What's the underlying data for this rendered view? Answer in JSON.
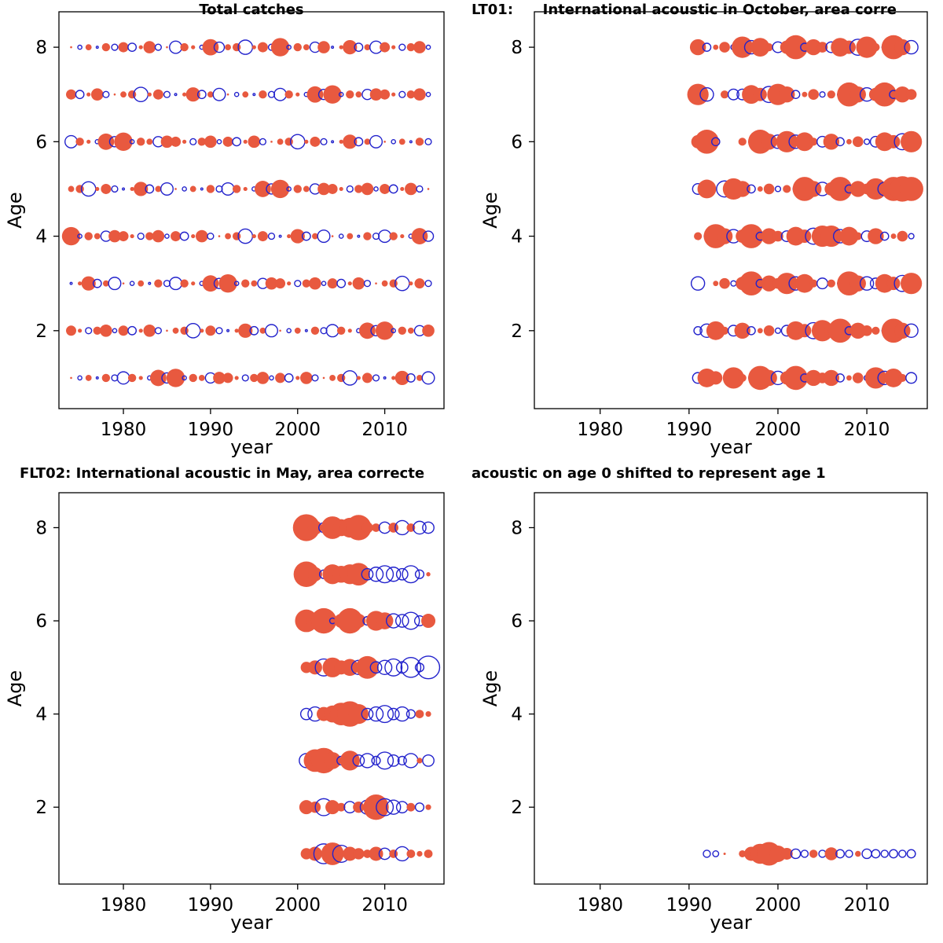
{
  "colors": {
    "positive_fill": "#e8593f",
    "negative_stroke": "#2222cc",
    "axis": "#000000"
  },
  "chart_data": [
    {
      "type": "scatter",
      "subtype": "bubble-residuals",
      "title": "Total catches",
      "xlabel": "year",
      "ylabel": "Age",
      "x_ticks": [
        1980,
        1990,
        2000,
        2010
      ],
      "y_ticks": [
        2,
        4,
        6,
        8
      ],
      "xlim": [
        1972.6,
        2016.8
      ],
      "ylim": [
        0.35,
        8.75
      ],
      "years": [
        1974,
        1975,
        1976,
        1977,
        1978,
        1979,
        1980,
        1981,
        1982,
        1983,
        1984,
        1985,
        1986,
        1987,
        1988,
        1989,
        1990,
        1991,
        1992,
        1993,
        1994,
        1995,
        1996,
        1997,
        1998,
        1999,
        2000,
        2001,
        2002,
        2003,
        2004,
        2005,
        2006,
        2007,
        2008,
        2009,
        2010,
        2011,
        2012,
        2013,
        2014,
        2015
      ],
      "series": [
        {
          "age": 8,
          "values": [
            0.1,
            -0.2,
            0.3,
            -0.1,
            0.4,
            -0.3,
            0.5,
            -0.4,
            0.2,
            0.6,
            -0.3,
            0.1,
            -0.6,
            0.4,
            0.2,
            -0.2,
            0.8,
            -0.5,
            0.3,
            0.4,
            -0.7,
            0.2,
            0.5,
            -0.3,
            0.9,
            -0.2,
            0.4,
            0.3,
            -0.5,
            0.6,
            -0.1,
            0.2,
            0.7,
            -0.4,
            0.3,
            -0.6,
            0.5,
            0.2,
            -0.3,
            0.4,
            0.6,
            -0.2
          ]
        },
        {
          "age": 7,
          "values": [
            0.5,
            -0.4,
            0.2,
            0.6,
            -0.3,
            0.1,
            0.3,
            0.4,
            -0.7,
            0.2,
            0.5,
            -0.3,
            -0.1,
            0.2,
            0.7,
            -0.4,
            0.3,
            -0.6,
            0.1,
            -0.2,
            0.3,
            -0.1,
            0.4,
            -0.3,
            -0.6,
            0.4,
            0.2,
            -0.2,
            0.8,
            -0.5,
            0.9,
            -0.2,
            0.4,
            0.3,
            -0.5,
            0.6,
            0.5,
            0.2,
            -0.3,
            0.4,
            0.6,
            -0.2
          ]
        },
        {
          "age": 6,
          "values": [
            -0.6,
            0.4,
            0.2,
            -0.2,
            0.8,
            -0.5,
            0.9,
            -0.2,
            0.4,
            0.3,
            -0.5,
            0.6,
            0.5,
            0.2,
            -0.3,
            0.4,
            0.6,
            -0.2,
            0.5,
            -0.4,
            0.2,
            0.6,
            -0.3,
            0.1,
            0.3,
            0.4,
            -0.7,
            0.2,
            0.5,
            -0.3,
            -0.1,
            0.2,
            0.7,
            -0.4,
            0.3,
            -0.6,
            0.1,
            -0.2,
            0.3,
            -0.1,
            0.4,
            -0.3
          ]
        },
        {
          "age": 5,
          "values": [
            0.3,
            0.4,
            -0.7,
            0.2,
            0.5,
            -0.3,
            -0.1,
            0.2,
            0.7,
            -0.4,
            0.3,
            -0.6,
            0.1,
            -0.2,
            0.3,
            -0.1,
            0.4,
            -0.3,
            -0.6,
            0.4,
            0.2,
            -0.2,
            0.8,
            -0.5,
            0.9,
            -0.2,
            0.4,
            0.3,
            -0.5,
            0.6,
            0.5,
            0.2,
            -0.3,
            0.4,
            0.6,
            -0.2,
            0.5,
            -0.4,
            0.2,
            0.6,
            -0.3,
            0.1
          ]
        },
        {
          "age": 4,
          "values": [
            0.9,
            -0.2,
            0.4,
            0.3,
            -0.5,
            0.6,
            0.5,
            0.2,
            -0.3,
            0.4,
            0.6,
            -0.2,
            0.5,
            -0.4,
            0.2,
            0.6,
            -0.3,
            0.1,
            0.3,
            0.4,
            -0.7,
            0.2,
            0.5,
            -0.3,
            -0.1,
            0.2,
            0.7,
            -0.4,
            0.3,
            -0.6,
            0.1,
            -0.2,
            0.3,
            -0.1,
            0.4,
            -0.3,
            -0.6,
            0.4,
            0.2,
            -0.2,
            0.8,
            -0.5
          ]
        },
        {
          "age": 3,
          "values": [
            -0.1,
            0.2,
            0.7,
            -0.4,
            0.3,
            -0.6,
            0.1,
            -0.2,
            0.3,
            -0.1,
            0.4,
            -0.3,
            -0.6,
            0.4,
            0.2,
            -0.2,
            0.8,
            -0.5,
            0.9,
            -0.2,
            0.4,
            0.3,
            -0.5,
            0.6,
            0.5,
            0.2,
            -0.3,
            0.4,
            0.6,
            -0.2,
            0.5,
            -0.4,
            0.2,
            0.6,
            -0.3,
            0.1,
            0.3,
            0.4,
            -0.7,
            0.2,
            0.5,
            -0.3
          ]
        },
        {
          "age": 2,
          "values": [
            0.5,
            0.2,
            -0.3,
            0.4,
            0.6,
            -0.2,
            0.5,
            -0.4,
            0.2,
            0.6,
            -0.3,
            0.1,
            0.3,
            0.4,
            -0.7,
            0.2,
            0.5,
            -0.3,
            -0.1,
            0.2,
            0.7,
            -0.4,
            0.3,
            -0.6,
            0.1,
            -0.2,
            0.3,
            -0.1,
            0.4,
            -0.3,
            -0.6,
            0.4,
            0.2,
            -0.2,
            0.8,
            -0.5,
            0.9,
            -0.2,
            0.4,
            0.3,
            -0.5,
            0.6
          ]
        },
        {
          "age": 1,
          "values": [
            0.1,
            -0.2,
            0.3,
            -0.1,
            0.4,
            -0.3,
            -0.6,
            0.4,
            0.2,
            -0.2,
            0.8,
            -0.5,
            0.9,
            -0.2,
            0.4,
            0.3,
            -0.5,
            0.6,
            0.5,
            0.2,
            -0.3,
            0.4,
            0.6,
            -0.2,
            0.5,
            -0.4,
            0.2,
            0.6,
            -0.3,
            0.1,
            0.3,
            0.4,
            -0.7,
            0.2,
            0.5,
            -0.3,
            -0.1,
            0.2,
            0.7,
            -0.4,
            0.3,
            -0.6
          ]
        }
      ]
    },
    {
      "type": "scatter",
      "subtype": "bubble-residuals",
      "title": "LT01:      International acoustic in October, area corre",
      "xlabel": "year",
      "ylabel": "Age",
      "x_ticks": [
        1980,
        1990,
        2000,
        2010
      ],
      "y_ticks": [
        2,
        4,
        6,
        8
      ],
      "xlim": [
        1972.6,
        2016.8
      ],
      "ylim": [
        0.35,
        8.75
      ],
      "years": [
        1991,
        1992,
        1993,
        1994,
        1995,
        1996,
        1997,
        1998,
        1999,
        2000,
        2001,
        2002,
        2003,
        2004,
        2005,
        2006,
        2007,
        2008,
        2009,
        2010,
        2011,
        2012,
        2013,
        2014,
        2015
      ],
      "series": [
        {
          "age": 8,
          "values": [
            0.6,
            -0.3,
            0.2,
            0.4,
            -0.2,
            0.8,
            -0.5,
            0.7,
            0.3,
            -0.4,
            0.5,
            0.9,
            -0.3,
            0.6,
            0.4,
            -0.4,
            0.7,
            0.5,
            -0.6,
            0.8,
            0.3,
            -0.2,
            0.9,
            0.6,
            -0.5
          ]
        },
        {
          "age": 7,
          "values": [
            0.8,
            -0.5,
            null,
            0.3,
            -0.4,
            -0.4,
            0.7,
            0.5,
            -0.6,
            0.8,
            0.6,
            -0.3,
            0.2,
            0.4,
            -0.2,
            0.3,
            -0.2,
            0.9,
            0.6,
            -0.5,
            0.5,
            0.9,
            -0.3,
            0.6,
            0.4
          ]
        },
        {
          "age": 6,
          "values": [
            0.5,
            0.9,
            -0.3,
            null,
            null,
            0.3,
            -0.2,
            0.9,
            0.6,
            -0.5,
            0.8,
            -0.5,
            0.7,
            0.3,
            -0.4,
            0.6,
            -0.3,
            0.2,
            0.4,
            -0.2,
            -0.4,
            0.7,
            0.5,
            -0.6,
            0.8
          ]
        },
        {
          "age": 5,
          "values": [
            -0.4,
            0.7,
            null,
            -0.6,
            0.8,
            0.6,
            -0.3,
            0.2,
            0.4,
            -0.2,
            0.3,
            -0.2,
            0.9,
            0.6,
            -0.5,
            0.5,
            0.9,
            -0.3,
            0.6,
            0.4,
            0.8,
            -0.5,
            0.9,
            0.95,
            0.9
          ]
        },
        {
          "age": 4,
          "values": [
            0.3,
            -0.2,
            0.9,
            0.6,
            -0.5,
            0.5,
            0.9,
            -0.3,
            0.6,
            0.4,
            -0.4,
            0.7,
            0.5,
            -0.6,
            0.8,
            0.8,
            -0.5,
            0.7,
            0.3,
            -0.4,
            0.6,
            -0.3,
            0.2,
            0.4,
            -0.2
          ]
        },
        {
          "age": 3,
          "values": [
            -0.5,
            null,
            0.2,
            0.4,
            -0.2,
            0.5,
            0.9,
            -0.3,
            0.6,
            0.4,
            0.8,
            -0.5,
            0.7,
            0.3,
            -0.4,
            0.3,
            -0.2,
            0.9,
            0.6,
            -0.5,
            -0.4,
            0.7,
            0.5,
            -0.6,
            0.8
          ]
        },
        {
          "age": 2,
          "values": [
            -0.3,
            -0.5,
            0.7,
            0.3,
            -0.4,
            0.6,
            -0.3,
            0.2,
            0.4,
            -0.2,
            -0.4,
            0.7,
            0.5,
            -0.6,
            0.8,
            0.5,
            0.9,
            -0.3,
            0.6,
            0.4,
            0.3,
            -0.2,
            0.9,
            0.6,
            -0.5
          ]
        },
        {
          "age": 1,
          "values": [
            -0.4,
            0.7,
            0.5,
            null,
            0.8,
            0.3,
            -0.2,
            0.9,
            0.6,
            -0.5,
            0.5,
            0.9,
            -0.3,
            0.6,
            0.4,
            0.6,
            -0.3,
            0.2,
            0.4,
            -0.2,
            0.8,
            -0.5,
            0.7,
            0.3,
            -0.4
          ]
        }
      ]
    },
    {
      "type": "scatter",
      "subtype": "bubble-residuals",
      "title": "FLT02: International acoustic in May, area correcte",
      "xlabel": "year",
      "ylabel": "Age",
      "x_ticks": [
        1980,
        1990,
        2000,
        2010
      ],
      "y_ticks": [
        2,
        4,
        6,
        8
      ],
      "xlim": [
        1972.6,
        2016.8
      ],
      "ylim": [
        0.35,
        8.75
      ],
      "years": [
        2001,
        2002,
        2003,
        2004,
        2005,
        2006,
        2007,
        2008,
        2009,
        2010,
        2011,
        2012,
        2013,
        2014,
        2015
      ],
      "series": [
        {
          "age": 8,
          "values": [
            0.95,
            0.5,
            -0.35,
            0.8,
            0.6,
            0.7,
            0.9,
            0.4,
            0.3,
            -0.4,
            0.35,
            -0.5,
            0.3,
            -0.45,
            -0.4
          ]
        },
        {
          "age": 7,
          "values": [
            0.9,
            0.5,
            -0.3,
            0.7,
            0.6,
            0.7,
            0.8,
            -0.4,
            -0.5,
            -0.6,
            -0.5,
            -0.4,
            -0.6,
            -0.3,
            0.15
          ]
        },
        {
          "age": 6,
          "values": [
            0.8,
            0.6,
            0.9,
            -0.2,
            0.5,
            0.9,
            0.5,
            -0.3,
            0.7,
            0.6,
            -0.5,
            -0.45,
            -0.6,
            -0.35,
            0.5
          ]
        },
        {
          "age": 5,
          "values": [
            0.4,
            0.5,
            -0.6,
            0.7,
            0.5,
            0.6,
            -0.5,
            0.8,
            -0.4,
            -0.5,
            -0.6,
            -0.4,
            -0.7,
            -0.3,
            -0.8
          ]
        },
        {
          "age": 4,
          "values": [
            -0.4,
            -0.5,
            0.5,
            0.6,
            0.8,
            0.9,
            0.7,
            -0.4,
            -0.5,
            -0.6,
            -0.4,
            -0.5,
            -0.3,
            0.3,
            0.2
          ]
        },
        {
          "age": 3,
          "values": [
            -0.5,
            0.8,
            0.9,
            0.6,
            -0.3,
            0.7,
            -0.4,
            -0.5,
            -0.3,
            -0.6,
            -0.4,
            -0.3,
            -0.5,
            0.2,
            -0.4
          ]
        },
        {
          "age": 2,
          "values": [
            0.5,
            0.4,
            -0.6,
            0.5,
            0.3,
            -0.4,
            0.4,
            -0.5,
            0.9,
            -0.6,
            -0.5,
            -0.4,
            0.3,
            -0.3,
            0.2
          ]
        },
        {
          "age": 1,
          "values": [
            0.4,
            0.5,
            -0.7,
            0.8,
            -0.6,
            0.5,
            0.4,
            0.3,
            0.5,
            -0.4,
            0.3,
            -0.5,
            0.3,
            0.2,
            0.3
          ]
        }
      ]
    },
    {
      "type": "scatter",
      "subtype": "bubble-residuals",
      "title": "acoustic on age 0 shifted to represent age 1",
      "xlabel": "year",
      "ylabel": "Age",
      "x_ticks": [
        1980,
        1990,
        2000,
        2010
      ],
      "y_ticks": [
        2,
        4,
        6,
        8
      ],
      "xlim": [
        1972.6,
        2016.8
      ],
      "ylim": [
        0.35,
        8.75
      ],
      "years": [
        1992,
        1993,
        1994,
        1995,
        1996,
        1997,
        1998,
        1999,
        2000,
        2001,
        2002,
        2003,
        2004,
        2005,
        2006,
        2007,
        2008,
        2009,
        2010,
        2011,
        2012,
        2013,
        2014,
        2015
      ],
      "series": [
        {
          "age": 1,
          "values": [
            -0.3,
            -0.25,
            0.1,
            null,
            0.3,
            0.6,
            0.85,
            1.0,
            0.7,
            0.5,
            -0.4,
            -0.3,
            0.35,
            -0.3,
            0.55,
            -0.35,
            -0.3,
            0.25,
            -0.4,
            -0.35,
            -0.3,
            -0.35,
            -0.3,
            -0.35
          ]
        }
      ]
    }
  ]
}
